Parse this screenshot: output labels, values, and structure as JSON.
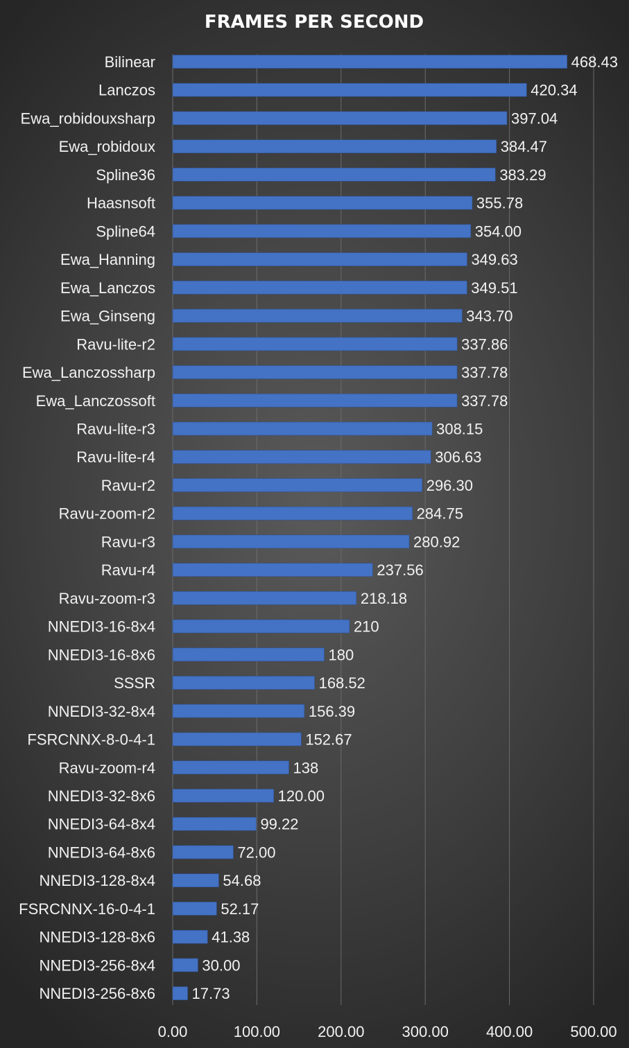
{
  "chart_data": {
    "type": "bar",
    "orientation": "horizontal",
    "title": "FRAMES PER SECOND",
    "xlabel": "",
    "ylabel": "",
    "xlim": [
      0,
      500
    ],
    "x_ticks": [
      "0.00",
      "100.00",
      "200.00",
      "300.00",
      "400.00",
      "500.00"
    ],
    "grid": true,
    "bar_color": "#4472C4",
    "categories": [
      "Bilinear",
      "Lanczos",
      "Ewa_robidouxsharp",
      "Ewa_robidoux",
      "Spline36",
      "Haasnsoft",
      "Spline64",
      "Ewa_Hanning",
      "Ewa_Lanczos",
      "Ewa_Ginseng",
      "Ravu-lite-r2",
      "Ewa_Lanczossharp",
      "Ewa_Lanczossoft",
      "Ravu-lite-r3",
      "Ravu-lite-r4",
      "Ravu-r2",
      "Ravu-zoom-r2",
      "Ravu-r3",
      "Ravu-r4",
      "Ravu-zoom-r3",
      "NNEDI3-16-8x4",
      "NNEDI3-16-8x6",
      "SSSR",
      "NNEDI3-32-8x4",
      "FSRCNNX-8-0-4-1",
      "Ravu-zoom-r4",
      "NNEDI3-32-8x6",
      "NNEDI3-64-8x4",
      "NNEDI3-64-8x6",
      "NNEDI3-128-8x4",
      "FSRCNNX-16-0-4-1",
      "NNEDI3-128-8x6",
      "NNEDI3-256-8x4",
      "NNEDI3-256-8x6"
    ],
    "values": [
      468.43,
      420.34,
      397.04,
      384.47,
      383.29,
      355.78,
      354.0,
      349.63,
      349.51,
      343.7,
      337.86,
      337.78,
      337.78,
      308.15,
      306.63,
      296.3,
      284.75,
      280.92,
      237.56,
      218.18,
      210,
      180,
      168.52,
      156.39,
      152.67,
      138,
      120.0,
      99.22,
      72.0,
      54.68,
      52.17,
      41.38,
      30.0,
      17.73
    ],
    "value_labels": [
      "468.43",
      "420.34",
      "397.04",
      "384.47",
      "383.29",
      "355.78",
      "354.00",
      "349.63",
      "349.51",
      "343.70",
      "337.86",
      "337.78",
      "337.78",
      "308.15",
      "306.63",
      "296.30",
      "284.75",
      "280.92",
      "237.56",
      "218.18",
      "210",
      "180",
      "168.52",
      "156.39",
      "152.67",
      "138",
      "120.00",
      "99.22",
      "72.00",
      "54.68",
      "52.17",
      "41.38",
      "30.00",
      "17.73"
    ]
  }
}
